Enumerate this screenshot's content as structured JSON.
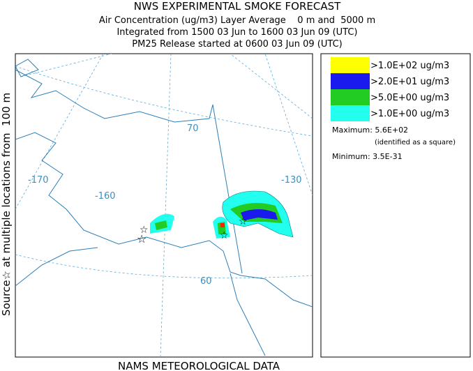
{
  "header": {
    "title": "NWS EXPERIMENTAL SMOKE FORECAST",
    "lines": [
      "Air Concentration (ug/m3) Layer Average    0 m and  5000 m",
      "Integrated from 1500 03 Jun to 1600 03 Jun 09 (UTC)",
      "PM25 Release started at 0600 03 Jun 09 (UTC)"
    ]
  },
  "side_label": "Source☆ at multiple locations from  100 m",
  "footer": "NAMS METEOROLOGICAL DATA",
  "map": {
    "labels": [
      "-170",
      "-160",
      "-130",
      "70",
      "60"
    ]
  },
  "legend": {
    "entries": [
      {
        "label": ">1.0E+02 ug/m3",
        "color": "#ffff00"
      },
      {
        "label": ">2.0E+01 ug/m3",
        "color": "#1a1aee"
      },
      {
        "label": ">5.0E+00 ug/m3",
        "color": "#22cc22"
      },
      {
        "label": ">1.0E+00 ug/m3",
        "color": "#22ffee"
      }
    ],
    "maximum": "Maximum: 5.6E+02",
    "maximum_note": "(identified as a square)",
    "minimum": "Minimum: 3.5E-31"
  }
}
